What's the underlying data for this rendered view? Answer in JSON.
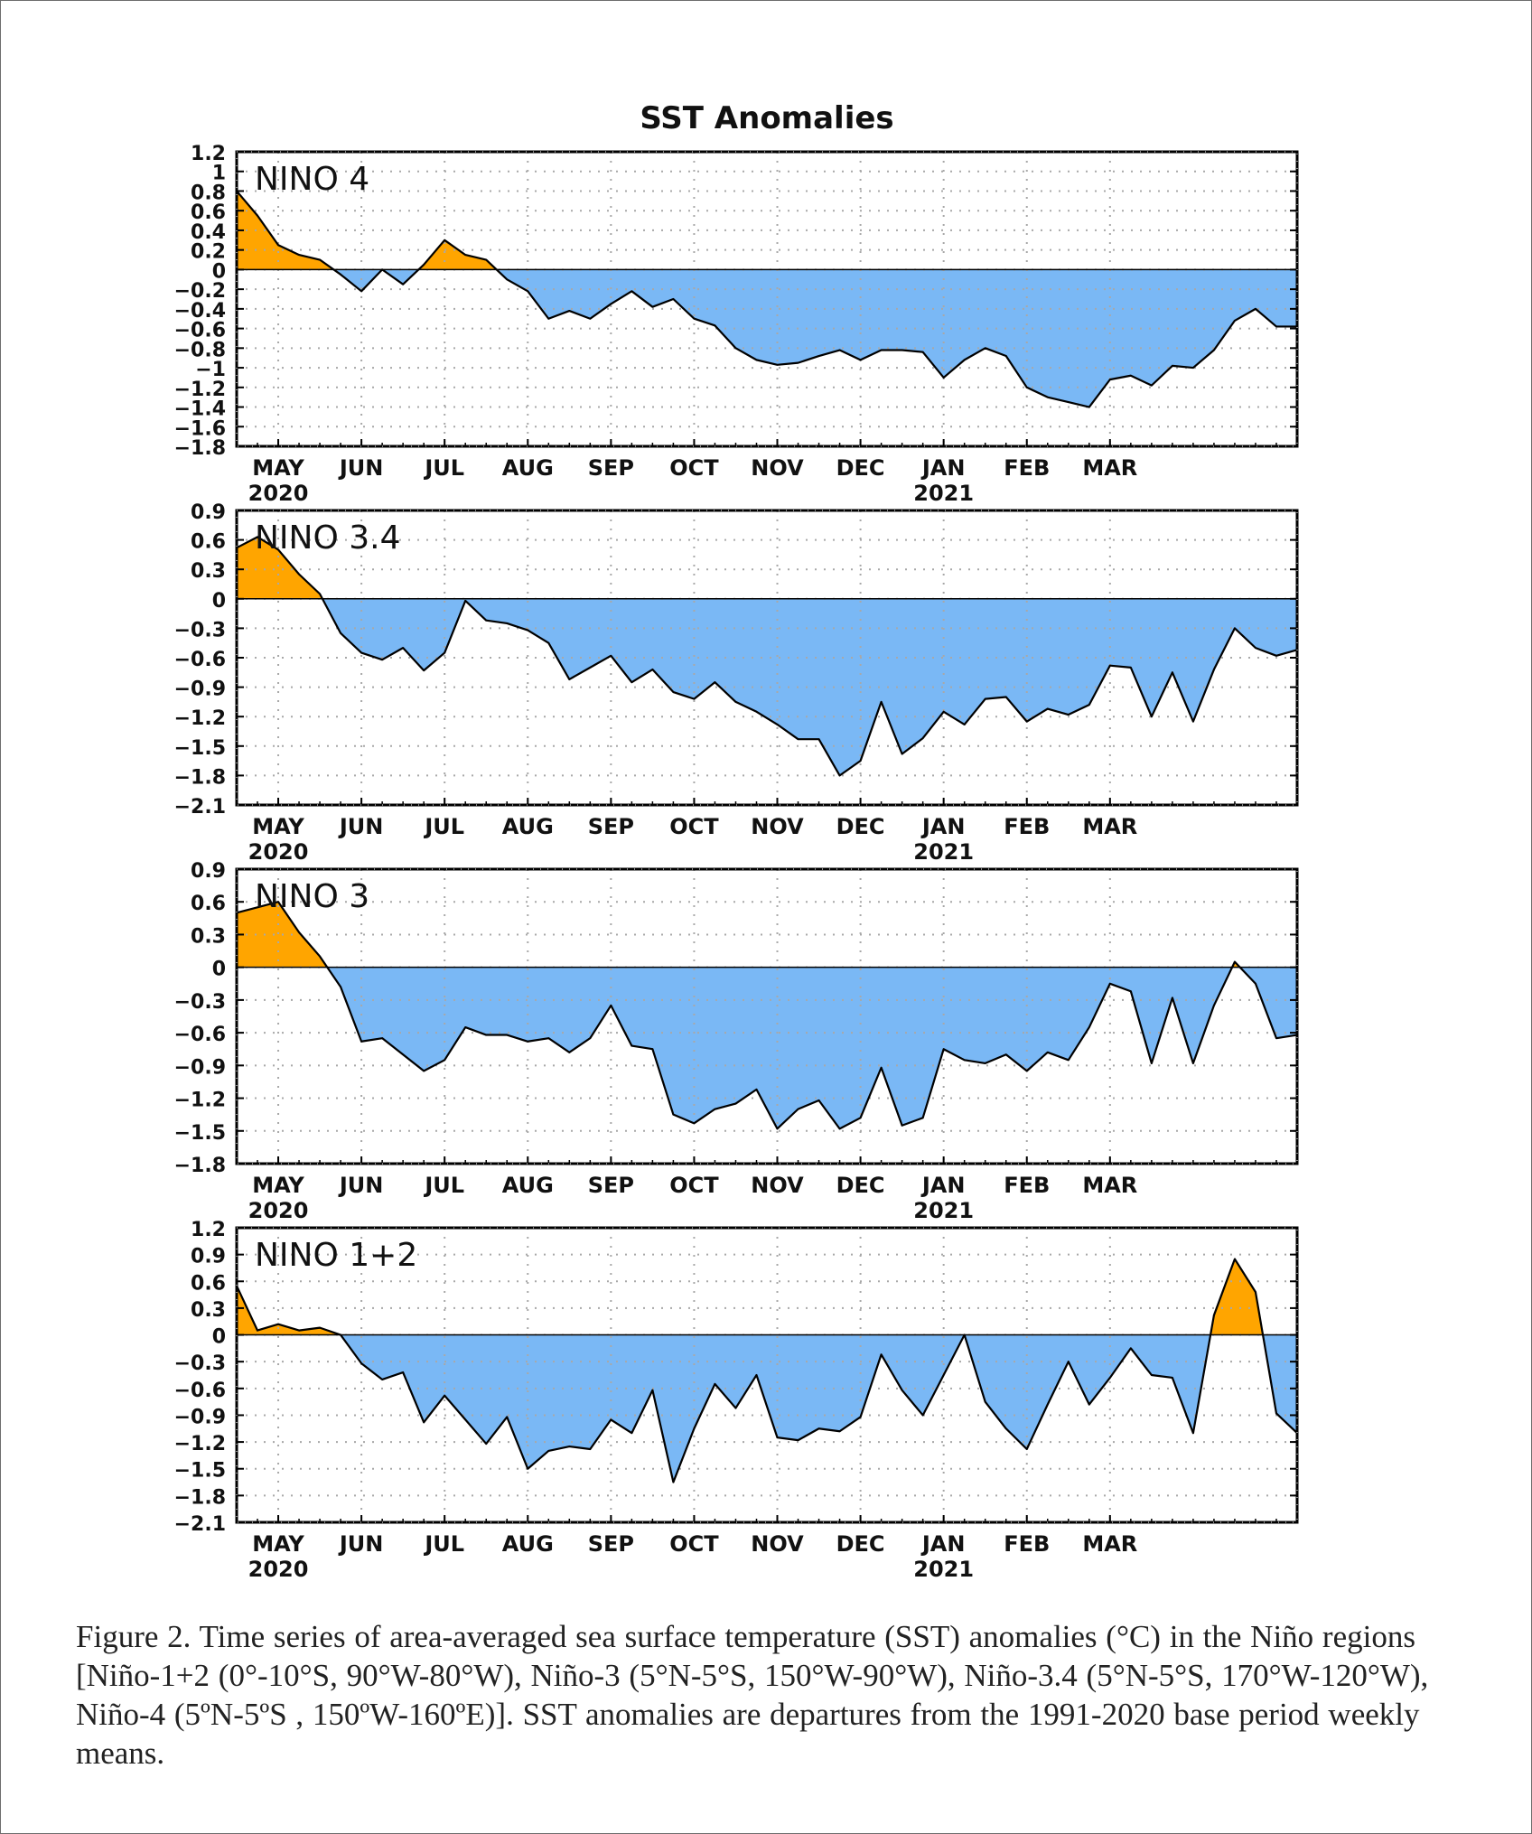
{
  "colors": {
    "positive": "#ffa500",
    "negative": "#7ab8f5",
    "line": "#000000",
    "grid": "#a8a8a8"
  },
  "chart_data": {
    "type": "area",
    "title": "SST Anomalies",
    "x_ticks": [
      {
        "label": "MAY",
        "year": "2020"
      },
      {
        "label": "JUN"
      },
      {
        "label": "JUL"
      },
      {
        "label": "AUG"
      },
      {
        "label": "SEP"
      },
      {
        "label": "OCT"
      },
      {
        "label": "NOV"
      },
      {
        "label": "DEC"
      },
      {
        "label": "JAN",
        "year": "2021"
      },
      {
        "label": "FEB"
      },
      {
        "label": "MAR"
      }
    ],
    "panels": [
      {
        "name": "NINO 4",
        "ylim": [
          -1.8,
          1.2
        ],
        "yticks": [
          "1.2",
          "1",
          "0.8",
          "0.6",
          "0.4",
          "0.2",
          "0",
          "−0.2",
          "−0.4",
          "−0.6",
          "−0.8",
          "−1",
          "−1.2",
          "−1.4",
          "−1.6",
          "−1.8"
        ],
        "values": [
          0.8,
          0.55,
          0.25,
          0.15,
          0.1,
          -0.05,
          -0.22,
          0.0,
          -0.15,
          0.05,
          0.3,
          0.15,
          0.1,
          -0.1,
          -0.22,
          -0.5,
          -0.42,
          -0.5,
          -0.35,
          -0.22,
          -0.38,
          -0.3,
          -0.5,
          -0.57,
          -0.8,
          -0.92,
          -0.97,
          -0.95,
          -0.88,
          -0.82,
          -0.92,
          -0.82,
          -0.82,
          -0.84,
          -1.1,
          -0.92,
          -0.8,
          -0.88,
          -1.2,
          -1.3,
          -1.35,
          -1.4,
          -1.12,
          -1.08,
          -1.18,
          -0.98,
          -1.0,
          -0.82,
          -0.52,
          -0.4,
          -0.58,
          -0.58
        ]
      },
      {
        "name": "NINO 3.4",
        "ylim": [
          -2.1,
          0.9
        ],
        "yticks": [
          "0.9",
          "0.6",
          "0.3",
          "0",
          "−0.3",
          "−0.6",
          "−0.9",
          "−1.2",
          "−1.5",
          "−1.8",
          "−2.1"
        ],
        "values": [
          0.52,
          0.63,
          0.5,
          0.25,
          0.05,
          -0.35,
          -0.55,
          -0.62,
          -0.5,
          -0.73,
          -0.55,
          -0.02,
          -0.22,
          -0.25,
          -0.32,
          -0.45,
          -0.82,
          -0.7,
          -0.58,
          -0.85,
          -0.72,
          -0.95,
          -1.02,
          -0.85,
          -1.05,
          -1.15,
          -1.28,
          -1.43,
          -1.43,
          -1.8,
          -1.65,
          -1.05,
          -1.58,
          -1.42,
          -1.15,
          -1.28,
          -1.02,
          -1.0,
          -1.25,
          -1.12,
          -1.18,
          -1.08,
          -0.68,
          -0.7,
          -1.2,
          -0.75,
          -1.25,
          -0.72,
          -0.3,
          -0.5,
          -0.58,
          -0.52
        ]
      },
      {
        "name": "NINO 3",
        "ylim": [
          -1.8,
          0.9
        ],
        "yticks": [
          "0.9",
          "0.6",
          "0.3",
          "0",
          "−0.3",
          "−0.6",
          "−0.9",
          "−1.2",
          "−1.5",
          "−1.8"
        ],
        "values": [
          0.5,
          0.55,
          0.6,
          0.32,
          0.1,
          -0.18,
          -0.68,
          -0.65,
          -0.8,
          -0.95,
          -0.85,
          -0.55,
          -0.62,
          -0.62,
          -0.68,
          -0.65,
          -0.78,
          -0.65,
          -0.35,
          -0.72,
          -0.75,
          -1.35,
          -1.43,
          -1.3,
          -1.25,
          -1.12,
          -1.48,
          -1.3,
          -1.22,
          -1.48,
          -1.38,
          -0.92,
          -1.45,
          -1.38,
          -0.75,
          -0.85,
          -0.88,
          -0.8,
          -0.95,
          -0.78,
          -0.85,
          -0.55,
          -0.15,
          -0.22,
          -0.88,
          -0.28,
          -0.88,
          -0.35,
          0.05,
          -0.15,
          -0.65,
          -0.62
        ]
      },
      {
        "name": "NINO 1+2",
        "ylim": [
          -2.1,
          1.2
        ],
        "yticks": [
          "1.2",
          "0.9",
          "0.6",
          "0.3",
          "0",
          "−0.3",
          "−0.6",
          "−0.9",
          "−1.2",
          "−1.5",
          "−1.8",
          "−2.1"
        ],
        "values": [
          0.55,
          0.05,
          0.12,
          0.05,
          0.08,
          0.0,
          -0.32,
          -0.5,
          -0.42,
          -0.98,
          -0.68,
          -0.95,
          -1.22,
          -0.92,
          -1.5,
          -1.3,
          -1.25,
          -1.28,
          -0.95,
          -1.1,
          -0.62,
          -1.65,
          -1.05,
          -0.55,
          -0.82,
          -0.45,
          -1.15,
          -1.18,
          -1.05,
          -1.08,
          -0.92,
          -0.22,
          -0.62,
          -0.9,
          -0.45,
          0.0,
          -0.75,
          -1.05,
          -1.28,
          -0.78,
          -0.3,
          -0.78,
          -0.48,
          -0.15,
          -0.45,
          -0.48,
          -1.1,
          0.22,
          0.85,
          0.48,
          -0.88,
          -1.1
        ]
      }
    ]
  },
  "caption": "Figure  2. Time  series of area-averaged sea surface temperature  (SST) anomalies  (°C) in the Niño regions [Niño-1+2  (0°-10°S,  90°W-80°W),  Niño-3  (5°N-5°S,  150°W-90°W),  Niño-3.4  (5°N-5°S,  170°W-120°W),  Niño-4  (5ºN-5ºS  , 150ºW-160ºE)].  SST anomalies  are departures from the 1991-2020  base period weekly means."
}
